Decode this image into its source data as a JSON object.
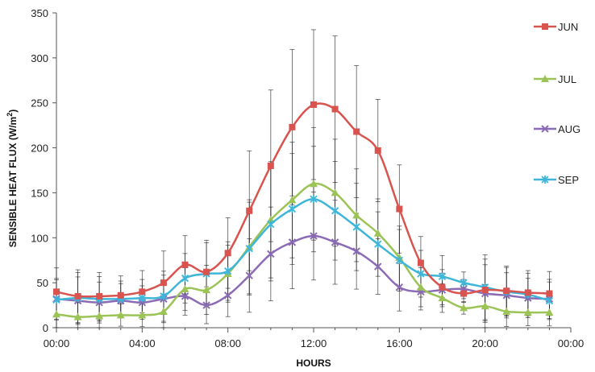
{
  "chart_data": {
    "type": "line",
    "xlabel": "HOURS",
    "ylabel": "SENSIBLE HEAT FLUX (W/m",
    "ylabel_sup": "2",
    "ylabel_close": ")",
    "ylim": [
      0,
      350
    ],
    "yticks": [
      0,
      50,
      100,
      150,
      200,
      250,
      300,
      350
    ],
    "xlim": [
      0,
      24
    ],
    "xticks": [
      0,
      4,
      8,
      12,
      16,
      20,
      24
    ],
    "xtick_labels": [
      "00:00",
      "04:00",
      "08:00",
      "12:00",
      "16:00",
      "20:00",
      "00:00"
    ],
    "grid": false,
    "legend_position": "right",
    "x": [
      0,
      1,
      2,
      3,
      4,
      5,
      6,
      7,
      8,
      9,
      10,
      11,
      12,
      13,
      14,
      15,
      16,
      17,
      18,
      19,
      20,
      21,
      22,
      23
    ],
    "series": [
      {
        "name": "JUN",
        "color": "#d9534f",
        "marker": "square",
        "values": [
          40,
          35,
          35,
          36,
          40,
          50,
          70,
          62,
          83,
          130,
          180,
          223,
          248,
          243,
          218,
          197,
          132,
          72,
          45,
          38,
          42,
          41,
          39,
          38
        ]
      },
      {
        "name": "JUL",
        "color": "#9bc355",
        "marker": "triangle",
        "values": [
          15,
          12,
          13,
          14,
          14,
          18,
          43,
          42,
          60,
          90,
          120,
          142,
          160,
          150,
          125,
          105,
          78,
          45,
          33,
          22,
          24,
          18,
          17,
          17
        ]
      },
      {
        "name": "AUG",
        "color": "#8b6bb5",
        "marker": "x",
        "values": [
          32,
          30,
          28,
          30,
          28,
          32,
          35,
          25,
          36,
          58,
          82,
          95,
          102,
          95,
          85,
          68,
          45,
          40,
          42,
          43,
          38,
          36,
          33,
          32
        ]
      },
      {
        "name": "SEP",
        "color": "#3fb6d9",
        "marker": "star",
        "values": [
          31,
          33,
          32,
          32,
          33,
          35,
          55,
          60,
          63,
          88,
          115,
          132,
          143,
          130,
          112,
          93,
          75,
          60,
          57,
          50,
          45,
          40,
          37,
          30
        ]
      }
    ],
    "error_bars": {
      "color": "#222222",
      "jun_halfwidth": [
        27,
        30,
        27,
        22,
        24,
        36,
        33,
        36,
        40,
        68,
        86,
        88,
        85,
        83,
        75,
        58,
        50,
        30,
        20,
        10,
        35,
        28,
        25,
        25
      ]
    }
  }
}
